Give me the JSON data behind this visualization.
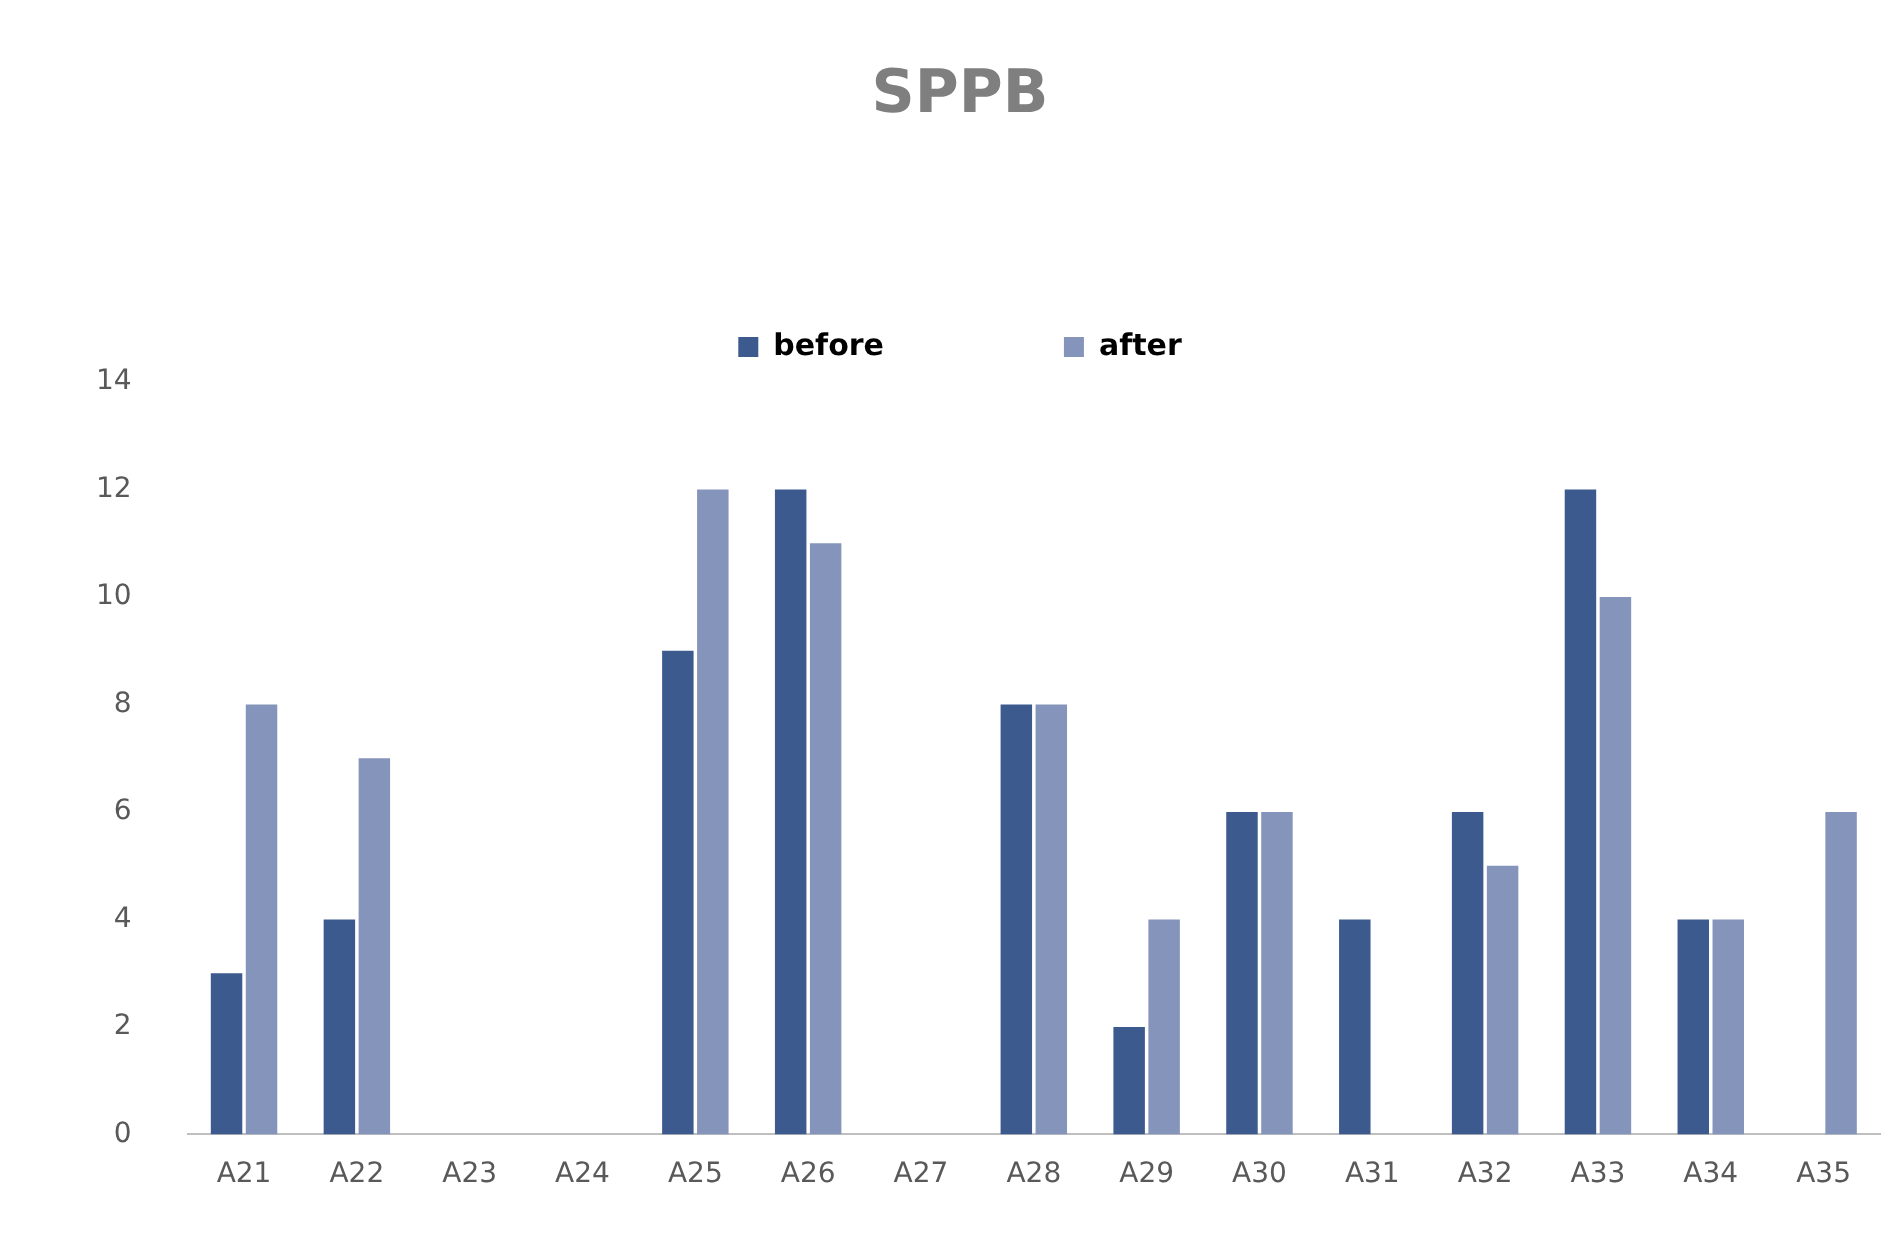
{
  "chart_data": {
    "type": "bar",
    "title": "SPPB",
    "categories": [
      "A21",
      "A22",
      "A23",
      "A24",
      "A25",
      "A26",
      "A27",
      "A28",
      "A29",
      "A30",
      "A31",
      "A32",
      "A33",
      "A34",
      "A35"
    ],
    "series": [
      {
        "name": "before",
        "color": "#3d5a8f",
        "values": [
          3,
          4,
          0,
          0,
          9,
          12,
          0,
          8,
          2,
          6,
          4,
          6,
          12,
          4,
          0
        ]
      },
      {
        "name": "after",
        "color": "#8594bb",
        "values": [
          8,
          7,
          0,
          0,
          12,
          11,
          0,
          8,
          4,
          6,
          0,
          5,
          10,
          4,
          6
        ]
      }
    ],
    "ylim": [
      0,
      14
    ],
    "yticks": [
      0,
      2,
      4,
      6,
      8,
      10,
      12,
      14
    ],
    "grid": false,
    "legend": "top"
  }
}
